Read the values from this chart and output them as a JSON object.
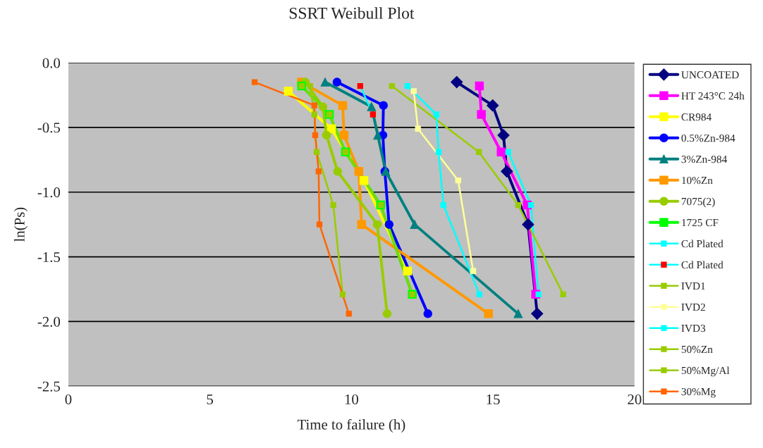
{
  "chart_data": {
    "type": "line",
    "title": "SSRT Weibull Plot",
    "xlabel": "Time to failure (h)",
    "ylabel": "ln(Ps)",
    "xlim": [
      0,
      20
    ],
    "xticks": [
      0,
      5,
      10,
      15,
      20
    ],
    "ylim": [
      -2.5,
      0
    ],
    "yticks": [
      {
        "value": 0,
        "label": "0.0"
      },
      {
        "value": -0.5,
        "label": "-0.5"
      },
      {
        "value": -1,
        "label": "-1.0"
      },
      {
        "value": -1.5,
        "label": "-1.5"
      },
      {
        "value": -2,
        "label": "-2.0"
      },
      {
        "value": -2.5,
        "label": "-2.5"
      }
    ],
    "grid": "y",
    "legend": "right",
    "line_style": "solid",
    "series": [
      {
        "name": "UNCOATED",
        "color": "#000080",
        "marker": "diamond",
        "x": [
          13.72,
          14.99,
          15.37,
          15.49,
          16.24,
          16.56
        ],
        "values": [
          -0.15,
          -0.33,
          -0.56,
          -0.84,
          -1.25,
          -1.94
        ]
      },
      {
        "name": "HT 243°C 24h",
        "color": "#ff00ff",
        "marker": "square",
        "x": [
          14.52,
          14.59,
          15.29,
          16.21,
          16.51
        ],
        "values": [
          -0.18,
          -0.4,
          -0.69,
          -1.1,
          -1.79
        ]
      },
      {
        "name": "CR984",
        "color": "#ffff00",
        "marker": "square",
        "x": [
          7.77,
          9.29,
          10.44,
          11.98
        ],
        "values": [
          -0.22,
          -0.51,
          -0.91,
          -1.61
        ]
      },
      {
        "name": "0.5%Zn-984",
        "color": "#0000ff",
        "marker": "circle",
        "x": [
          9.49,
          11.13,
          11.11,
          11.18,
          11.33,
          12.7
        ],
        "values": [
          -0.15,
          -0.33,
          -0.56,
          -0.84,
          -1.25,
          -1.94
        ]
      },
      {
        "name": "3%Zn-984",
        "color": "#008080",
        "marker": "triangle",
        "x": [
          9.07,
          10.71,
          10.93,
          11.21,
          12.23,
          15.89
        ],
        "values": [
          -0.15,
          -0.34,
          -0.56,
          -0.84,
          -1.25,
          -1.94
        ]
      },
      {
        "name": "10%Zn",
        "color": "#ff9900",
        "marker": "square",
        "x": [
          8.24,
          9.69,
          9.74,
          10.26,
          10.36,
          14.84
        ],
        "values": [
          -0.15,
          -0.33,
          -0.56,
          -0.84,
          -1.25,
          -1.94
        ]
      },
      {
        "name": "7075(2)",
        "color": "#99cc00",
        "marker": "circle",
        "x": [
          8.37,
          8.99,
          9.12,
          9.51,
          10.91,
          11.26
        ],
        "values": [
          -0.15,
          -0.34,
          -0.56,
          -0.84,
          -1.25,
          -1.94
        ]
      },
      {
        "name": "1725 CF",
        "color": "#00ff00",
        "marker": "square",
        "x": [
          8.24,
          9.22,
          9.79,
          11.03,
          12.15
        ],
        "values": [
          -0.18,
          -0.4,
          -0.69,
          -1.1,
          -1.79
        ]
      },
      {
        "name": "Cd Plated",
        "color": "#00ffff",
        "marker": "square",
        "x": [
          15.54,
          16.34,
          16.61
        ],
        "values": [
          -0.69,
          -1.1,
          -1.79
        ]
      },
      {
        "name": "Cd Plated",
        "color": "#00ffff",
        "colors": [
          "#ff0000",
          "#ff0000"
        ],
        "marker": "square",
        "x": [
          10.31,
          10.76
        ],
        "values": [
          -0.18,
          -0.4
        ]
      },
      {
        "name": "IVD1",
        "color": "#99cc00",
        "marker": "square",
        "x": [
          11.43,
          14.5,
          15.89,
          17.48
        ],
        "values": [
          -0.18,
          -0.69,
          -1.1,
          -1.79
        ]
      },
      {
        "name": "IVD2",
        "color": "#ffff99",
        "marker": "square",
        "x": [
          12.2,
          12.35,
          13.77,
          14.3
        ],
        "values": [
          -0.22,
          -0.51,
          -0.91,
          -1.61
        ]
      },
      {
        "name": "IVD3",
        "color": "#00ffff",
        "marker": "square",
        "x": [
          11.98,
          13.0,
          13.08,
          13.25,
          14.52
        ],
        "values": [
          -0.18,
          -0.4,
          -0.69,
          -1.1,
          -1.79
        ]
      },
      {
        "name": "50%Zn",
        "color": "#99cc00",
        "marker": "square",
        "x": [
          8.24,
          9.22,
          9.79,
          11.03,
          12.15
        ],
        "values": [
          -0.18,
          -0.4,
          -0.69,
          -1.1,
          -1.79
        ]
      },
      {
        "name": "50%Mg/Al",
        "color": "#99cc00",
        "marker": "square",
        "x": [
          8.54,
          8.69,
          8.77,
          9.36,
          9.69
        ],
        "values": [
          -0.18,
          -0.4,
          -0.69,
          -1.1,
          -1.79
        ]
      },
      {
        "name": "30%Mg",
        "color": "#ff6600",
        "marker": "square",
        "x": [
          6.58,
          8.69,
          8.72,
          8.84,
          8.87,
          9.91
        ],
        "values": [
          -0.15,
          -0.33,
          -0.56,
          -0.84,
          -1.25,
          -1.94
        ]
      }
    ]
  }
}
